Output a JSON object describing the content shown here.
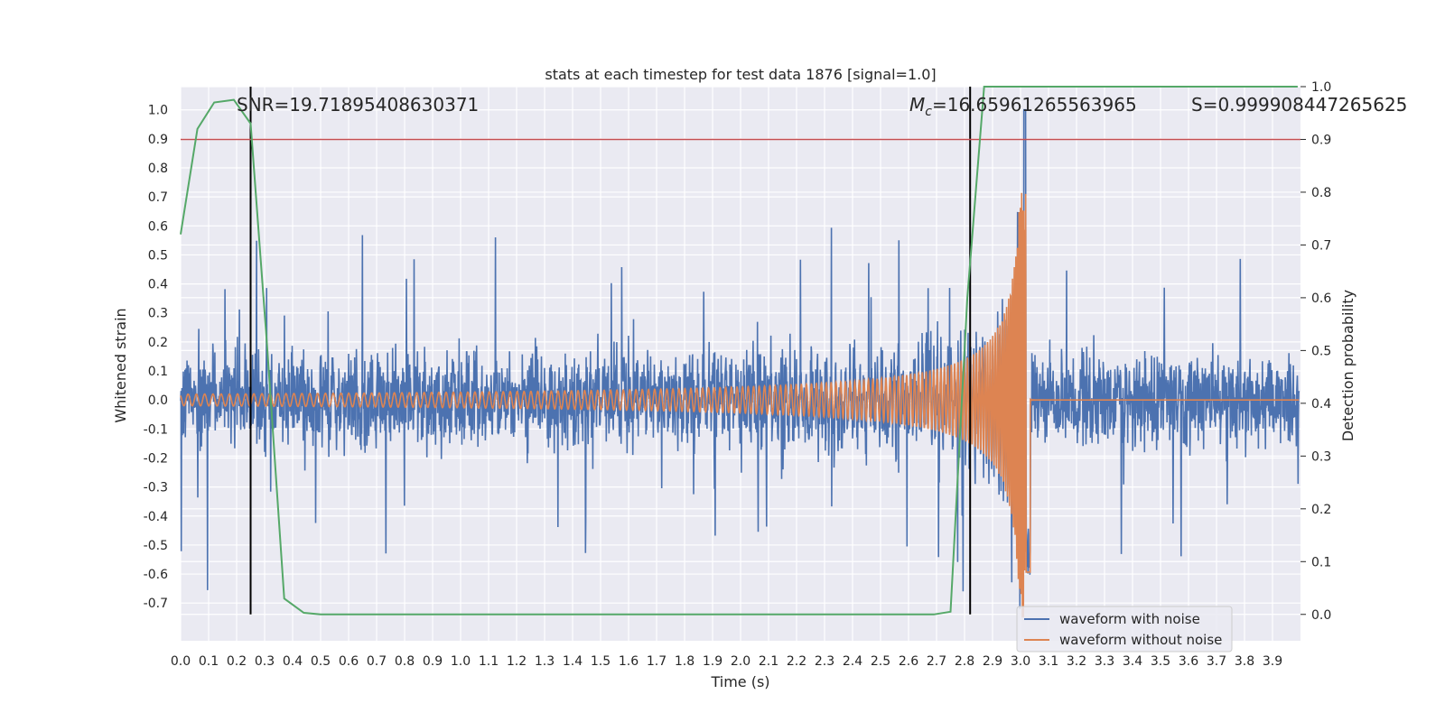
{
  "chart_data": {
    "type": "line",
    "title": "stats at each timestep for test data 1876 [signal=1.0]",
    "xlabel": "Time (s)",
    "ylabel": "Whitened strain",
    "y2label": "Detection probability",
    "xlim": [
      0.0,
      4.0
    ],
    "ylim": [
      -0.83,
      1.08
    ],
    "y2lim": [
      -0.05,
      1.0
    ],
    "xticks": [
      "0.0",
      "0.1",
      "0.2",
      "0.3",
      "0.4",
      "0.5",
      "0.6",
      "0.7",
      "0.8",
      "0.9",
      "1.0",
      "1.1",
      "1.2",
      "1.3",
      "1.4",
      "1.5",
      "1.6",
      "1.7",
      "1.8",
      "1.9",
      "2.0",
      "2.1",
      "2.2",
      "2.3",
      "2.4",
      "2.5",
      "2.6",
      "2.7",
      "2.8",
      "2.9",
      "3.0",
      "3.1",
      "3.2",
      "3.3",
      "3.4",
      "3.5",
      "3.6",
      "3.7",
      "3.8",
      "3.9"
    ],
    "yticks": [
      "1.0",
      "0.9",
      "0.8",
      "0.7",
      "0.6",
      "0.5",
      "0.4",
      "0.3",
      "0.2",
      "0.1",
      "0.0",
      "-0.1",
      "-0.2",
      "-0.3",
      "-0.4",
      "-0.5",
      "-0.6",
      "-0.7"
    ],
    "y2ticks": [
      "1.0",
      "0.9",
      "0.8",
      "0.7",
      "0.6",
      "0.5",
      "0.4",
      "0.3",
      "0.2",
      "0.1",
      "0.0"
    ],
    "annotations": {
      "snr": "SNR=19.71895408630371",
      "mc_symbol": "M",
      "mc_sub": "c",
      "mc_value": "=16.65961265563965",
      "s": "S=0.999908447265625"
    },
    "legend": {
      "position": "lower-right",
      "entries": [
        "waveform with noise",
        "waveform without noise"
      ]
    },
    "colors": {
      "noise": "#4c72b0",
      "clean": "#dd8452",
      "probability": "#55a868",
      "threshold": "#c44e52",
      "markers": "#000000",
      "background": "#eaeaf2",
      "grid": "#ffffff"
    },
    "threshold_y2": 0.9,
    "vertical_markers_x": [
      0.25,
      2.82
    ],
    "series": [
      {
        "name": "Detection probability",
        "axis": "y2",
        "x": [
          0.0,
          0.06,
          0.12,
          0.19,
          0.25,
          0.31,
          0.37,
          0.44,
          0.5,
          0.56,
          0.62,
          0.69,
          0.75,
          1.0,
          1.5,
          2.0,
          2.5,
          2.69,
          2.75,
          2.81,
          2.87,
          2.94,
          3.0,
          3.5,
          3.99
        ],
        "values": [
          0.72,
          0.92,
          0.97,
          0.975,
          0.93,
          0.5,
          0.03,
          0.003,
          0.0,
          0.0,
          0.0,
          0.0,
          0.0,
          0.0,
          0.0,
          0.0,
          0.0,
          0.0,
          0.005,
          0.6,
          1.0,
          1.0,
          1.0,
          1.0,
          1.0
        ]
      },
      {
        "name": "waveform with noise",
        "axis": "y",
        "description_range": [
          -0.7,
          1.0
        ]
      },
      {
        "name": "waveform without noise",
        "axis": "y",
        "chirp_peak_time": 3.02,
        "chirp_peak_amplitude": 0.75
      }
    ]
  }
}
